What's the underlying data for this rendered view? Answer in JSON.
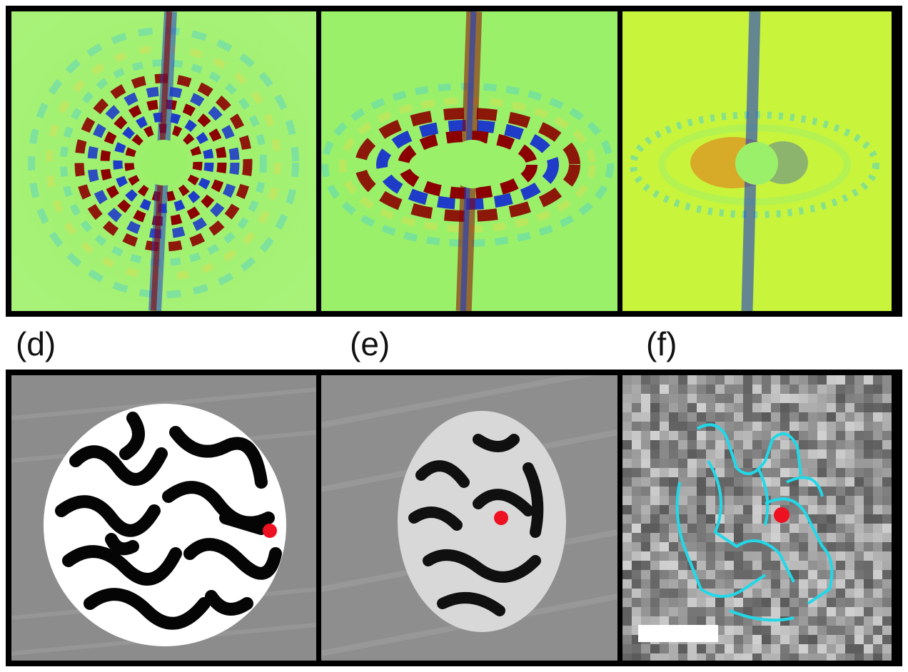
{
  "figure": {
    "labels": {
      "d": "(d)",
      "e": "(e)",
      "f": "(f)"
    },
    "colors": {
      "background_green": "#9bf06a",
      "yellow_green": "#c8f53c",
      "blue": "#1f3cc8",
      "cyan": "#39c9e8",
      "dark_red": "#8b0000",
      "orange_red": "#e8500f",
      "marker_red": "#ee1122",
      "contour_cyan": "#22d8e8",
      "scale_bar_white": "#ffffff"
    }
  }
}
